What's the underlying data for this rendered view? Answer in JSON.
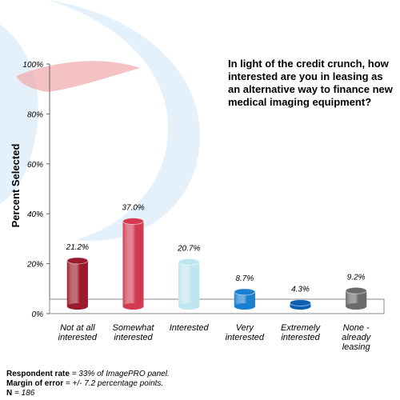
{
  "chart_data": {
    "type": "bar",
    "title": "In light of the credit crunch, how interested are you in leasing as an alternative way to finance new medical imaging equipment?",
    "ylabel": "Percent Selected",
    "xlabel": "",
    "ylim": [
      0,
      100
    ],
    "yticks": [
      "0%",
      "20%",
      "40%",
      "60%",
      "80%",
      "100%"
    ],
    "categories": [
      [
        "Not at all",
        "interested"
      ],
      [
        "Somewhat",
        "interested"
      ],
      [
        "Interested"
      ],
      [
        "Very",
        "interested"
      ],
      [
        "Extremely",
        "interested"
      ],
      [
        "None -",
        "already",
        "leasing"
      ]
    ],
    "values": [
      21.2,
      37.0,
      20.7,
      8.7,
      4.3,
      9.2
    ],
    "value_labels": [
      "21.2%",
      "37.0%",
      "20.7%",
      "8.7%",
      "4.3%",
      "9.2%"
    ],
    "colors": [
      "#9b1b2c",
      "#d23a52",
      "#bfe6ef",
      "#1b7fd0",
      "#0b5fb4",
      "#6b6b6b"
    ],
    "grid": false,
    "legend": "none"
  },
  "footnotes": {
    "respondent_label": "Respondent rate",
    "respondent_value": "= 33% of ImagePRO panel.",
    "margin_label": "Margin of error",
    "margin_value": "= +/- 7.2 percentage points.",
    "n_label": "N",
    "n_value": "= 186"
  }
}
